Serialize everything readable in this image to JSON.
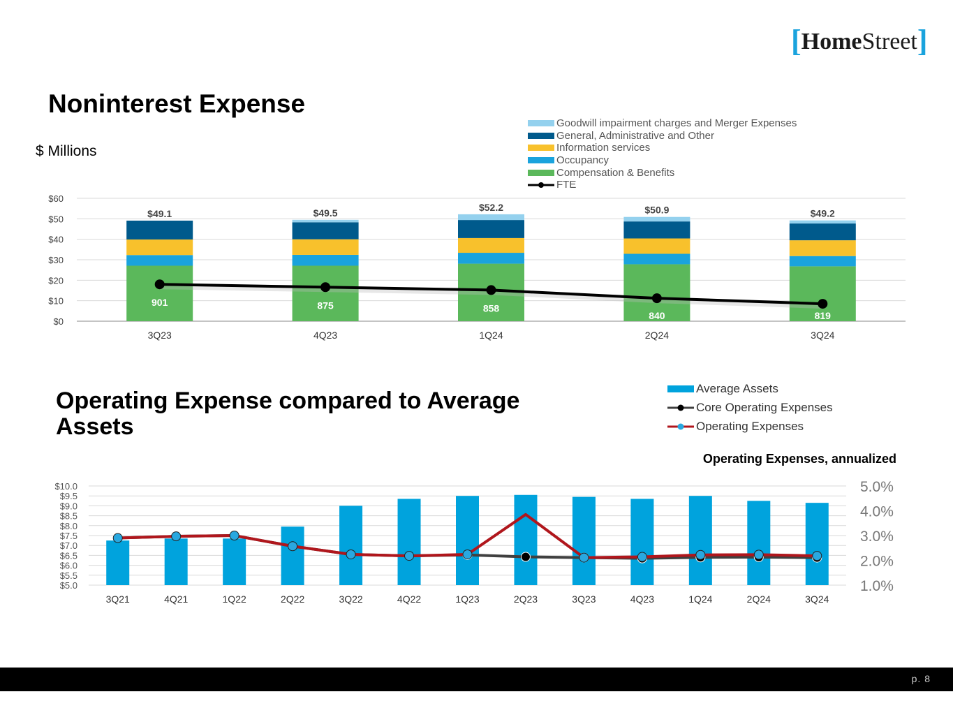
{
  "brand": {
    "name_bold": "Home",
    "name_regular": "Street",
    "bracket_left": "[",
    "bracket_right": "]"
  },
  "titles": {
    "noninterest": "Noninterest Expense",
    "units": "$ Millions",
    "operating": "Operating Expense compared to Average Assets",
    "operating_sub": "Operating Expenses, annualized"
  },
  "footer": {
    "page": "p. 8"
  },
  "chart_data": [
    {
      "type": "bar",
      "stacked": true,
      "title": "Noninterest Expense",
      "ylabel": "$ Millions",
      "categories": [
        "3Q23",
        "4Q23",
        "1Q24",
        "2Q24",
        "3Q24"
      ],
      "ylim": [
        0,
        60
      ],
      "yticks": [
        0,
        10,
        20,
        30,
        40,
        50,
        60
      ],
      "ytick_labels": [
        "$0",
        "$10",
        "$20",
        "$30",
        "$40",
        "$50",
        "$60"
      ],
      "series": [
        {
          "name": "Compensation & Benefits",
          "color": "#5bb85b",
          "values": [
            27.1,
            27.1,
            28.1,
            27.8,
            26.8
          ]
        },
        {
          "name": "Occupancy",
          "color": "#1aa3dd",
          "values": [
            5.2,
            5.3,
            5.3,
            5.1,
            5.0
          ]
        },
        {
          "name": "Information services",
          "color": "#f8c12c",
          "values": [
            7.6,
            7.6,
            7.2,
            7.5,
            7.7
          ]
        },
        {
          "name": "General, Administrative and Other",
          "color": "#005a8c",
          "values": [
            9.2,
            8.3,
            8.8,
            8.3,
            8.2
          ]
        },
        {
          "name": "Goodwill impairment charges and Merger Expenses",
          "color": "#94d1ee",
          "values": [
            0.0,
            1.2,
            2.8,
            2.2,
            1.5
          ]
        }
      ],
      "totals": [
        "$49.1",
        "$49.5",
        "$52.2",
        "$50.9",
        "$49.2"
      ],
      "fte": {
        "name": "FTE",
        "color": "#000000",
        "values": [
          901,
          875,
          858,
          840,
          819
        ],
        "labels": [
          "901",
          "875",
          "858",
          "840",
          "819"
        ],
        "plot_values": [
          18.0,
          16.6,
          15.2,
          11.2,
          8.5
        ]
      },
      "legend_order": [
        "Goodwill impairment charges and Merger Expenses",
        "General, Administrative and Other",
        "Information services",
        "Occupancy",
        "Compensation & Benefits",
        "FTE"
      ]
    },
    {
      "type": "bar",
      "title": "Operating Expense compared to Average Assets",
      "categories": [
        "3Q21",
        "4Q21",
        "1Q22",
        "2Q22",
        "3Q22",
        "4Q22",
        "1Q23",
        "2Q23",
        "3Q23",
        "4Q23",
        "1Q24",
        "2Q24",
        "3Q24"
      ],
      "ylim": [
        5.0,
        10.0
      ],
      "yticks": [
        5.0,
        5.5,
        6.0,
        6.5,
        7.0,
        7.5,
        8.0,
        8.5,
        9.0,
        9.5,
        10.0
      ],
      "ytick_labels": [
        "$5.0",
        "$5.5",
        "$6.0",
        "$6.5",
        "$7.0",
        "$7.5",
        "$8.0",
        "$8.5",
        "$9.0",
        "$9.5",
        "$10.0"
      ],
      "y2lim": [
        1.0,
        5.0
      ],
      "y2ticks": [
        1.0,
        2.0,
        3.0,
        4.0,
        5.0
      ],
      "y2tick_labels": [
        "1.0%",
        "2.0%",
        "3.0%",
        "4.0%",
        "5.0%"
      ],
      "series": [
        {
          "name": "Average Assets",
          "color": "#00a3dd",
          "axis": "left",
          "values": [
            7.25,
            7.35,
            7.35,
            7.95,
            9.0,
            9.35,
            9.5,
            9.55,
            9.45,
            9.35,
            9.5,
            9.25,
            9.15
          ]
        },
        {
          "name": "Core Operating Expenses",
          "color": "#404040",
          "marker": "#000000",
          "axis": "right",
          "values": [
            2.9,
            2.97,
            3.0,
            2.57,
            2.24,
            2.18,
            2.22,
            2.14,
            2.11,
            2.08,
            2.12,
            2.13,
            2.11
          ]
        },
        {
          "name": "Operating Expenses",
          "color": "#b0161c",
          "marker": "#29a8e0",
          "axis": "right",
          "values": [
            2.9,
            2.97,
            3.0,
            2.57,
            2.24,
            2.18,
            2.24,
            3.85,
            2.11,
            2.14,
            2.22,
            2.23,
            2.18
          ]
        }
      ]
    }
  ]
}
